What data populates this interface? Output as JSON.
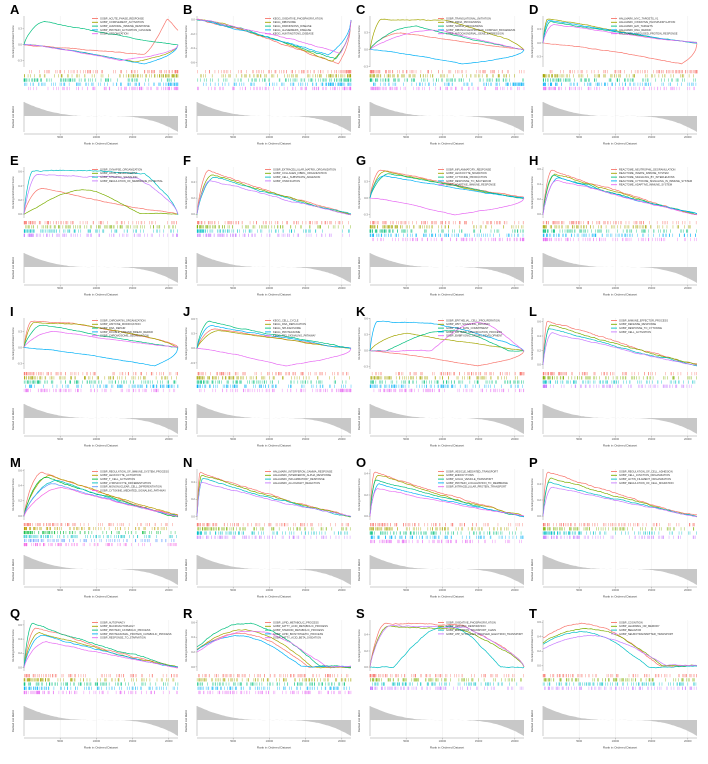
{
  "figure": {
    "background": "#ffffff",
    "x_axis_label": "Rank in Ordered Dataset",
    "y_axis_label_top": "Running Enrichment Score",
    "y_axis_label_bottom": "Ranked List Metric",
    "x_tick_labels": [
      "5000",
      "10000",
      "15000",
      "20000"
    ],
    "panel_letters": [
      "A",
      "B",
      "C",
      "D",
      "E",
      "F",
      "G",
      "H",
      "I",
      "J",
      "K",
      "L",
      "M",
      "N",
      "O",
      "P",
      "Q",
      "R",
      "S",
      "T"
    ],
    "ranked_metric_fill": "#c8c8c8",
    "grid_color": "#ececec",
    "axis_color": "#9a9a9a"
  },
  "chart_data": [
    {
      "panel": "A",
      "type": "line",
      "xlabel": "Rank in Ordered Dataset",
      "ylabel": "Running Enrichment Score",
      "series": [
        {
          "name": "GOBP_ACUTE_PHASE_RESPONSE",
          "color": "#F8766D",
          "shape": "latepeak",
          "es": 0.5,
          "px": 0.93,
          "a": 0.78,
          "dip": -0.18
        },
        {
          "name": "GOBP_COMPLEMENT_ACTIVATION",
          "color": "#A3A500",
          "shape": "down",
          "es": -0.32,
          "px": 0.72
        },
        {
          "name": "GOBP_HUMORAL_IMMUNE_RESPONSE",
          "color": "#00BF7D",
          "shape": "up",
          "es": 0.42,
          "px": 0.14
        },
        {
          "name": "GOBP_PROTEIN_ACTIVATION_CASCADE",
          "color": "#00B0F6",
          "shape": "down",
          "es": -0.36,
          "px": 0.78
        },
        {
          "name": "GOBP_OPSONIZATION",
          "color": "#E76BF3",
          "shape": "down",
          "es": -0.3,
          "px": 0.62
        }
      ]
    },
    {
      "panel": "B",
      "type": "line",
      "series": [
        {
          "name": "KEGG_OXIDATIVE_PHOSPHORYLATION",
          "color": "#F8766D",
          "shape": "down",
          "es": -0.62,
          "px": 0.92
        },
        {
          "name": "KEGG_RIBOSOME",
          "color": "#A3A500",
          "shape": "down",
          "es": -0.58,
          "px": 0.88
        },
        {
          "name": "KEGG_PARKINSONS_DISEASE",
          "color": "#00BF7D",
          "shape": "down",
          "es": -0.55,
          "px": 0.9
        },
        {
          "name": "KEGG_ALZHEIMERS_DISEASE",
          "color": "#00B0F6",
          "shape": "down",
          "es": -0.5,
          "px": 0.85
        },
        {
          "name": "KEGG_HUNTINGTONS_DISEASE",
          "color": "#E76BF3",
          "shape": "down",
          "es": -0.46,
          "px": 0.93
        }
      ]
    },
    {
      "panel": "C",
      "type": "line",
      "series": [
        {
          "name": "GOBP_TRANSLATIONAL_INITIATION",
          "color": "#F8766D",
          "shape": "up",
          "es": 0.3,
          "px": 0.2
        },
        {
          "name": "GOBP_RRNA_PROCESSING",
          "color": "#A3A500",
          "shape": "plateau",
          "es": 0.55,
          "px": 0.08,
          "hx": 0.52
        },
        {
          "name": "GOBP_NCRNA_PROCESSING",
          "color": "#00BF7D",
          "shape": "up",
          "es": 0.42,
          "px": 0.3
        },
        {
          "name": "GOBP_RIBONUCLEOPROTEIN_COMPLEX_BIOGENESIS",
          "color": "#00B0F6",
          "shape": "down",
          "es": -0.26,
          "px": 0.6
        },
        {
          "name": "GOBP_MITOCHONDRIAL_GENE_EXPRESSION",
          "color": "#E76BF3",
          "shape": "up",
          "es": 0.36,
          "px": 0.45
        }
      ]
    },
    {
      "panel": "D",
      "type": "line",
      "series": [
        {
          "name": "HALLMARK_MYC_TARGETS_V1",
          "color": "#F8766D",
          "shape": "down",
          "es": -0.45,
          "px": 0.9
        },
        {
          "name": "HALLMARK_OXIDATIVE_PHOSPHORYLATION",
          "color": "#A3A500",
          "shape": "up",
          "es": 0.52,
          "px": 0.03
        },
        {
          "name": "HALLMARK_E2F_TARGETS",
          "color": "#00BF7D",
          "shape": "up",
          "es": 0.46,
          "px": 0.05
        },
        {
          "name": "HALLMARK_DNA_REPAIR",
          "color": "#00B0F6",
          "shape": "up",
          "es": 0.5,
          "px": 0.04
        },
        {
          "name": "HALLMARK_UNFOLDED_PROTEIN_RESPONSE",
          "color": "#E76BF3",
          "shape": "up",
          "es": 0.4,
          "px": 0.07
        }
      ]
    },
    {
      "panel": "E",
      "type": "line",
      "series": [
        {
          "name": "GOBP_SYNAPSE_ORGANIZATION",
          "color": "#F8766D",
          "shape": "up",
          "es": 0.36,
          "px": 0.12
        },
        {
          "name": "GOBP_AXON_DEVELOPMENT",
          "color": "#7CAE00",
          "shape": "bell",
          "es": 0.34,
          "px": 0.38,
          "w": 0.38
        },
        {
          "name": "GOBP_SYNAPTIC_SIGNALING",
          "color": "#00BFC4",
          "shape": "plateau",
          "es": 0.62,
          "px": 0.06,
          "hx": 0.78
        },
        {
          "name": "GOBP_REGULATION_OF_MEMBRANE_POTENTIAL",
          "color": "#C77CFF",
          "shape": "plateau",
          "es": 0.56,
          "px": 0.09,
          "hx": 0.74
        }
      ]
    },
    {
      "panel": "F",
      "type": "line",
      "series": [
        {
          "name": "GOBP_EXTRACELLULAR_MATRIX_ORGANIZATION",
          "color": "#F8766D",
          "shape": "up",
          "es": 0.55,
          "px": 0.08
        },
        {
          "name": "GOBP_COLLAGEN_FIBRIL_ORGANIZATION",
          "color": "#7CAE00",
          "shape": "up",
          "es": 0.5,
          "px": 0.1
        },
        {
          "name": "GOBP_CELL_SUBSTRATE_ADHESION",
          "color": "#00BFC4",
          "shape": "up",
          "es": 0.46,
          "px": 0.12
        },
        {
          "name": "GOBP_OSSIFICATION",
          "color": "#C77CFF",
          "shape": "up",
          "es": 0.42,
          "px": 0.09
        }
      ]
    },
    {
      "panel": "G",
      "type": "line",
      "series": [
        {
          "name": "GOBP_INFLAMMATORY_RESPONSE",
          "color": "#F8766D",
          "shape": "up",
          "es": 0.52,
          "px": 0.07
        },
        {
          "name": "GOBP_LEUKOCYTE_MIGRATION",
          "color": "#A3A500",
          "shape": "up",
          "es": 0.48,
          "px": 0.1
        },
        {
          "name": "GOBP_CYTOKINE_PRODUCTION",
          "color": "#00BF7D",
          "shape": "up",
          "es": 0.44,
          "px": 0.12
        },
        {
          "name": "GOBP_RESPONSE_TO_BACTERIUM",
          "color": "#00B0F6",
          "shape": "up",
          "es": 0.4,
          "px": 0.09
        },
        {
          "name": "GOBP_ADAPTIVE_IMMUNE_RESPONSE",
          "color": "#E76BF3",
          "shape": "down",
          "es": -0.3,
          "px": 0.55
        }
      ]
    },
    {
      "panel": "H",
      "type": "line",
      "series": [
        {
          "name": "REACTOME_NEUTROPHIL_DEGRANULATION",
          "color": "#F8766D",
          "shape": "up",
          "es": 0.58,
          "px": 0.06
        },
        {
          "name": "REACTOME_INNATE_IMMUNE_SYSTEM",
          "color": "#A3A500",
          "shape": "up",
          "es": 0.55,
          "px": 0.08
        },
        {
          "name": "REACTOME_SIGNALING_BY_INTERLEUKINS",
          "color": "#00BF7D",
          "shape": "up",
          "es": 0.52,
          "px": 0.07
        },
        {
          "name": "REACTOME_CYTOKINE_SIGNALING_IN_IMMUNE_SYSTEM",
          "color": "#00B0F6",
          "shape": "up",
          "es": 0.49,
          "px": 0.1
        },
        {
          "name": "REACTOME_ADAPTIVE_IMMUNE_SYSTEM",
          "color": "#E76BF3",
          "shape": "up",
          "es": 0.46,
          "px": 0.09
        }
      ]
    },
    {
      "panel": "I",
      "type": "line",
      "series": [
        {
          "name": "GOBP_CHROMATIN_ORGANIZATION",
          "color": "#F8766D",
          "shape": "plateau",
          "es": 0.5,
          "px": 0.05,
          "hx": 0.3
        },
        {
          "name": "GOBP_HISTONE_MODIFICATION",
          "color": "#A3A500",
          "shape": "plateau",
          "es": 0.47,
          "px": 0.07,
          "hx": 0.33
        },
        {
          "name": "GOBP_DNA_REPAIR",
          "color": "#00BF7D",
          "shape": "up",
          "es": 0.42,
          "px": 0.12
        },
        {
          "name": "GOBP_DOUBLE_STRAND_BREAK_REPAIR",
          "color": "#00B0F6",
          "shape": "down",
          "es": -0.34,
          "px": 0.85
        },
        {
          "name": "GOBP_CHROMOSOME_SEGREGATION",
          "color": "#E76BF3",
          "shape": "up",
          "es": 0.3,
          "px": 0.2
        }
      ]
    },
    {
      "panel": "J",
      "type": "line",
      "series": [
        {
          "name": "KEGG_CELL_CYCLE",
          "color": "#F8766D",
          "shape": "up",
          "es": 0.4,
          "px": 0.12
        },
        {
          "name": "KEGG_DNA_REPLICATION",
          "color": "#A3A500",
          "shape": "up",
          "es": 0.36,
          "px": 0.15
        },
        {
          "name": "KEGG_SPLICEOSOME",
          "color": "#00BF7D",
          "shape": "up",
          "es": 0.55,
          "px": 0.08
        },
        {
          "name": "KEGG_PROTEASOME",
          "color": "#00B0F6",
          "shape": "up",
          "es": 0.46,
          "px": 0.1
        },
        {
          "name": "KEGG_P53_SIGNALING_PATHWAY",
          "color": "#E76BF3",
          "shape": "down",
          "es": -0.36,
          "px": 0.58
        }
      ]
    },
    {
      "panel": "K",
      "type": "line",
      "series": [
        {
          "name": "GOBP_EPITHELIAL_CELL_PROLIFERATION",
          "color": "#F8766D",
          "shape": "down",
          "es": -0.28,
          "px": 0.7
        },
        {
          "name": "GOBP_WNT_SIGNALING_PATHWAY",
          "color": "#A3A500",
          "shape": "up",
          "es": 0.32,
          "px": 0.25
        },
        {
          "name": "GOBP_CELL_FATE_COMMITMENT",
          "color": "#00BF7D",
          "shape": "bell",
          "es": 0.38,
          "px": 0.5,
          "w": 0.4
        },
        {
          "name": "GOBP_PATTERN_SPECIFICATION_PROCESS",
          "color": "#00B0F6",
          "shape": "plateau",
          "es": 0.55,
          "px": 0.05,
          "hx": 0.4
        },
        {
          "name": "GOBP_EMBRYONIC_ORGAN_DEVELOPMENT",
          "color": "#E76BF3",
          "shape": "bell",
          "es": 0.52,
          "px": 0.7,
          "w": 0.3
        }
      ]
    },
    {
      "panel": "L",
      "type": "line",
      "series": [
        {
          "name": "GOBP_IMMUNE_EFFECTOR_PROCESS",
          "color": "#F8766D",
          "shape": "up",
          "es": 0.62,
          "px": 0.03
        },
        {
          "name": "GOBP_DEFENSE_RESPONSE",
          "color": "#7CAE00",
          "shape": "up",
          "es": 0.55,
          "px": 0.05
        },
        {
          "name": "GOBP_RESPONSE_TO_CYTOKINE",
          "color": "#00BFC4",
          "shape": "up",
          "es": 0.5,
          "px": 0.04
        },
        {
          "name": "GOBP_CELL_ACTIVATION",
          "color": "#C77CFF",
          "shape": "up",
          "es": 0.45,
          "px": 0.06
        }
      ]
    },
    {
      "panel": "M",
      "type": "line",
      "series": [
        {
          "name": "GOBP_REGULATION_OF_IMMUNE_SYSTEM_PROCESS",
          "color": "#F8766D",
          "shape": "up",
          "es": 0.58,
          "px": 0.12
        },
        {
          "name": "GOBP_LEUKOCYTE_ACTIVATION",
          "color": "#B79F00",
          "shape": "up",
          "es": 0.54,
          "px": 0.18
        },
        {
          "name": "GOBP_T_CELL_ACTIVATION",
          "color": "#00BA38",
          "shape": "up",
          "es": 0.5,
          "px": 0.15
        },
        {
          "name": "GOBP_LYMPHOCYTE_DIFFERENTIATION",
          "color": "#00BFC4",
          "shape": "up",
          "es": 0.46,
          "px": 0.22
        },
        {
          "name": "GOBP_MONONUCLEAR_CELL_DIFFERENTIATION",
          "color": "#619CFF",
          "shape": "up",
          "es": 0.42,
          "px": 0.2
        },
        {
          "name": "GOBP_CYTOKINE_MEDIATED_SIGNALING_PATHWAY",
          "color": "#F564E3",
          "shape": "up",
          "es": 0.38,
          "px": 0.25
        }
      ]
    },
    {
      "panel": "N",
      "type": "line",
      "series": [
        {
          "name": "HALLMARK_INTERFERON_GAMMA_RESPONSE",
          "color": "#F8766D",
          "shape": "up",
          "es": 0.52,
          "px": 0.02
        },
        {
          "name": "HALLMARK_INTERFERON_ALPHA_RESPONSE",
          "color": "#7CAE00",
          "shape": "up",
          "es": 0.48,
          "px": 0.03
        },
        {
          "name": "HALLMARK_INFLAMMATORY_RESPONSE",
          "color": "#00BFC4",
          "shape": "up",
          "es": 0.44,
          "px": 0.04
        },
        {
          "name": "HALLMARK_ALLOGRAFT_REJECTION",
          "color": "#C77CFF",
          "shape": "up",
          "es": 0.4,
          "px": 0.03
        }
      ]
    },
    {
      "panel": "O",
      "type": "line",
      "series": [
        {
          "name": "GOBP_VESICLE_MEDIATED_TRANSPORT",
          "color": "#F8766D",
          "shape": "up",
          "es": 0.42,
          "px": 0.03
        },
        {
          "name": "GOBP_ENDOCYTOSIS",
          "color": "#A3A500",
          "shape": "up",
          "es": 0.38,
          "px": 0.05
        },
        {
          "name": "GOBP_GOLGI_VESICLE_TRANSPORT",
          "color": "#00BF7D",
          "shape": "up",
          "es": 0.34,
          "px": 0.04
        },
        {
          "name": "GOBP_PROTEIN_LOCALIZATION_TO_MEMBRANE",
          "color": "#00B0F6",
          "shape": "up",
          "es": 0.3,
          "px": 0.06
        },
        {
          "name": "GOBP_INTRACELLULAR_PROTEIN_TRANSPORT",
          "color": "#E76BF3",
          "shape": "up",
          "es": 0.26,
          "px": 0.05
        }
      ]
    },
    {
      "panel": "P",
      "type": "line",
      "series": [
        {
          "name": "GOBP_REGULATION_OF_CELL_ADHESION",
          "color": "#F8766D",
          "shape": "up",
          "es": 0.55,
          "px": 0.03
        },
        {
          "name": "GOBP_CELL_JUNCTION_ORGANIZATION",
          "color": "#7CAE00",
          "shape": "up",
          "es": 0.48,
          "px": 0.05
        },
        {
          "name": "GOBP_ACTIN_FILAMENT_ORGANIZATION",
          "color": "#00BFC4",
          "shape": "up",
          "es": 0.42,
          "px": 0.04
        },
        {
          "name": "GOBP_REGULATION_OF_CELL_MIGRATION",
          "color": "#C77CFF",
          "shape": "up",
          "es": 0.36,
          "px": 0.06
        }
      ]
    },
    {
      "panel": "Q",
      "type": "line",
      "series": [
        {
          "name": "GOBP_AUTOPHAGY",
          "color": "#F8766D",
          "shape": "up",
          "es": 0.55,
          "px": 0.08
        },
        {
          "name": "GOBP_MACROAUTOPHAGY",
          "color": "#A3A500",
          "shape": "up",
          "es": 0.5,
          "px": 0.1
        },
        {
          "name": "GOBP_PROTEIN_CATABOLIC_PROCESS",
          "color": "#00BF7D",
          "shape": "up",
          "es": 0.62,
          "px": 0.06
        },
        {
          "name": "GOBP_PROTEASOMAL_PROTEIN_CATABOLIC_PROCESS",
          "color": "#00B0F6",
          "shape": "up",
          "es": 0.45,
          "px": 0.12
        },
        {
          "name": "GOBP_RESPONSE_TO_STARVATION",
          "color": "#E76BF3",
          "shape": "up",
          "es": 0.36,
          "px": 0.15
        }
      ]
    },
    {
      "panel": "R",
      "type": "line",
      "series": [
        {
          "name": "GOBP_LIPID_METABOLIC_PROCESS",
          "color": "#F8766D",
          "shape": "bell",
          "es": 0.45,
          "px": 0.28,
          "w": 0.45
        },
        {
          "name": "GOBP_FATTY_ACID_METABOLIC_PROCESS",
          "color": "#A3A500",
          "shape": "bell",
          "es": 0.5,
          "px": 0.3,
          "w": 0.45
        },
        {
          "name": "GOBP_STEROID_METABOLIC_PROCESS",
          "color": "#00BF7D",
          "shape": "bell",
          "es": 0.58,
          "px": 0.32,
          "w": 0.48
        },
        {
          "name": "GOBP_LIPID_BIOSYNTHETIC_PROCESS",
          "color": "#00B0F6",
          "shape": "bell",
          "es": 0.42,
          "px": 0.26,
          "w": 0.42
        },
        {
          "name": "GOBP_FATTY_ACID_BETA_OXIDATION",
          "color": "#E76BF3",
          "shape": "bell",
          "es": 0.48,
          "px": 0.35,
          "w": 0.5
        }
      ]
    },
    {
      "panel": "S",
      "type": "line",
      "series": [
        {
          "name": "GOBP_OXIDATIVE_PHOSPHORYLATION",
          "color": "#F8766D",
          "shape": "plateau",
          "es": 0.55,
          "px": 0.1,
          "hx": 0.6
        },
        {
          "name": "GOBP_AEROBIC_RESPIRATION",
          "color": "#7CAE00",
          "shape": "plateau",
          "es": 0.5,
          "px": 0.12,
          "hx": 0.58
        },
        {
          "name": "GOBP_ELECTRON_TRANSPORT_CHAIN",
          "color": "#00BFC4",
          "shape": "bell",
          "es": 0.5,
          "px": 0.5,
          "w": 0.35
        },
        {
          "name": "GOBP_ATP_SYNTHESIS_COUPLED_ELECTRON_TRANSPORT",
          "color": "#C77CFF",
          "shape": "plateau",
          "es": 0.52,
          "px": 0.14,
          "hx": 0.62
        }
      ]
    },
    {
      "panel": "T",
      "type": "line",
      "series": [
        {
          "name": "GOBP_COGNITION",
          "color": "#F8766D",
          "shape": "bell",
          "es": 0.58,
          "px": 0.26,
          "w": 0.5
        },
        {
          "name": "GOBP_LEARNING_OR_MEMORY",
          "color": "#7CAE00",
          "shape": "bell",
          "es": 0.52,
          "px": 0.28,
          "w": 0.5
        },
        {
          "name": "GOBP_BEHAVIOR",
          "color": "#00BFC4",
          "shape": "bell",
          "es": 0.47,
          "px": 0.24,
          "w": 0.45
        },
        {
          "name": "GOBP_NEUROTRANSMITTER_TRANSPORT",
          "color": "#C77CFF",
          "shape": "bell",
          "es": 0.42,
          "px": 0.3,
          "w": 0.5
        }
      ]
    }
  ]
}
